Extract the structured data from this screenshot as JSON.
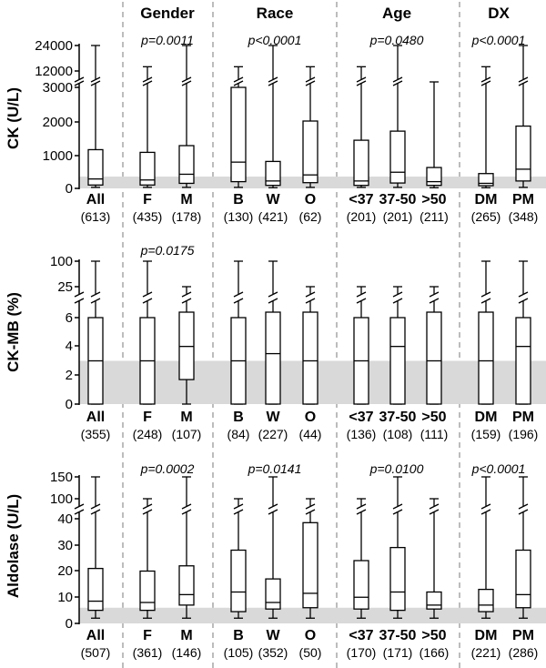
{
  "headers": [
    "Gender",
    "Race",
    "Age",
    "DX"
  ],
  "chart_data": [
    {
      "type": "boxplot",
      "ylabel": "CK (U/L)",
      "yticks": [
        "24000",
        "12000",
        "3000",
        "2000",
        "1000",
        "0"
      ],
      "normal_range": [
        0,
        350
      ],
      "categories": [
        "All",
        "F",
        "M",
        "B",
        "W",
        "O",
        "<37",
        "37-50",
        ">50",
        "DM",
        "PM"
      ],
      "counts": [
        "(613)",
        "(435)",
        "(178)",
        "(130)",
        "(421)",
        "(62)",
        "(201)",
        "(201)",
        "(211)",
        "(265)",
        "(348)"
      ],
      "pvalues": [
        "p=0.0011",
        "p<0.0001",
        "p=0.0480",
        "p<0.0001"
      ],
      "boxes": [
        {
          "min": 30,
          "q1": 100,
          "median": 280,
          "q3": 1150,
          "max": 24000
        },
        {
          "min": 30,
          "q1": 100,
          "median": 250,
          "q3": 1070,
          "max": 14000
        },
        {
          "min": 30,
          "q1": 150,
          "median": 420,
          "q3": 1270,
          "max": 24000
        },
        {
          "min": 30,
          "q1": 200,
          "median": 780,
          "q3": 3000,
          "max": 14000
        },
        {
          "min": 20,
          "q1": 90,
          "median": 220,
          "q3": 800,
          "max": 24000
        },
        {
          "min": 30,
          "q1": 170,
          "median": 400,
          "q3": 2000,
          "max": 14000
        },
        {
          "min": 30,
          "q1": 90,
          "median": 220,
          "q3": 1430,
          "max": 14000
        },
        {
          "min": 30,
          "q1": 160,
          "median": 480,
          "q3": 1700,
          "max": 24000
        },
        {
          "min": 20,
          "q1": 90,
          "median": 200,
          "q3": 620,
          "max": 11000
        },
        {
          "min": 20,
          "q1": 80,
          "median": 150,
          "q3": 440,
          "max": 14000
        },
        {
          "min": 30,
          "q1": 220,
          "median": 570,
          "q3": 1850,
          "max": 24000
        }
      ]
    },
    {
      "type": "boxplot",
      "ylabel": "CK-MB (%)",
      "yticks": [
        "100",
        "25",
        "6",
        "4",
        "2",
        "0"
      ],
      "normal_range": [
        0,
        3
      ],
      "categories": [
        "All",
        "F",
        "M",
        "B",
        "W",
        "O",
        "<37",
        "37-50",
        ">50",
        "DM",
        "PM"
      ],
      "counts": [
        "(355)",
        "(248)",
        "(107)",
        "(84)",
        "(227)",
        "(44)",
        "(136)",
        "(108)",
        "(111)",
        "(159)",
        "(196)"
      ],
      "pvalues": [
        "p=0.0175",
        "",
        "",
        ""
      ],
      "boxes": [
        {
          "min": 0,
          "q1": 0,
          "median": 3,
          "q3": 6,
          "max": 100
        },
        {
          "min": 0,
          "q1": 0,
          "median": 3,
          "q3": 6,
          "max": 100
        },
        {
          "min": 0,
          "q1": 1.7,
          "median": 4,
          "q3": 7,
          "max": 25
        },
        {
          "min": 0,
          "q1": 0,
          "median": 3,
          "q3": 6,
          "max": 100
        },
        {
          "min": 0,
          "q1": 0,
          "median": 3.5,
          "q3": 7,
          "max": 100
        },
        {
          "min": 0,
          "q1": 0,
          "median": 3,
          "q3": 7,
          "max": 25
        },
        {
          "min": 0,
          "q1": 0,
          "median": 3,
          "q3": 6,
          "max": 25
        },
        {
          "min": 0,
          "q1": 0,
          "median": 4,
          "q3": 6,
          "max": 25
        },
        {
          "min": 0,
          "q1": 0,
          "median": 3,
          "q3": 7,
          "max": 25
        },
        {
          "min": 0,
          "q1": 0,
          "median": 3,
          "q3": 7,
          "max": 100
        },
        {
          "min": 0,
          "q1": 0,
          "median": 4,
          "q3": 6,
          "max": 100
        }
      ]
    },
    {
      "type": "boxplot",
      "ylabel": "Aldolase (U/L)",
      "yticks": [
        "150",
        "100",
        "40",
        "30",
        "20",
        "10",
        "0"
      ],
      "normal_range": [
        0,
        6
      ],
      "categories": [
        "All",
        "F",
        "M",
        "B",
        "W",
        "O",
        "<37",
        "37-50",
        ">50",
        "DM",
        "PM"
      ],
      "counts": [
        "(507)",
        "(361)",
        "(146)",
        "(105)",
        "(352)",
        "(50)",
        "(170)",
        "(171)",
        "(166)",
        "(221)",
        "(286)"
      ],
      "pvalues": [
        "p=0.0002",
        "p=0.0141",
        "p=0.0100",
        "p<0.0001"
      ],
      "boxes": [
        {
          "min": 2,
          "q1": 5,
          "median": 8.5,
          "q3": 21,
          "max": 150
        },
        {
          "min": 2,
          "q1": 5,
          "median": 8,
          "q3": 20,
          "max": 100
        },
        {
          "min": 2,
          "q1": 7,
          "median": 11,
          "q3": 22,
          "max": 150
        },
        {
          "min": 2,
          "q1": 4.5,
          "median": 12,
          "q3": 28,
          "max": 100
        },
        {
          "min": 2,
          "q1": 5.5,
          "median": 8,
          "q3": 17,
          "max": 150
        },
        {
          "min": 2,
          "q1": 6,
          "median": 11.5,
          "q3": 38.5,
          "max": 100
        },
        {
          "min": 2,
          "q1": 5.5,
          "median": 10,
          "q3": 24,
          "max": 100
        },
        {
          "min": 2,
          "q1": 5,
          "median": 12,
          "q3": 29,
          "max": 150
        },
        {
          "min": 2,
          "q1": 5.5,
          "median": 7,
          "q3": 12,
          "max": 100
        },
        {
          "min": 2,
          "q1": 4.5,
          "median": 7,
          "q3": 13,
          "max": 150
        },
        {
          "min": 2,
          "q1": 6,
          "median": 11,
          "q3": 28,
          "max": 150
        }
      ]
    }
  ]
}
